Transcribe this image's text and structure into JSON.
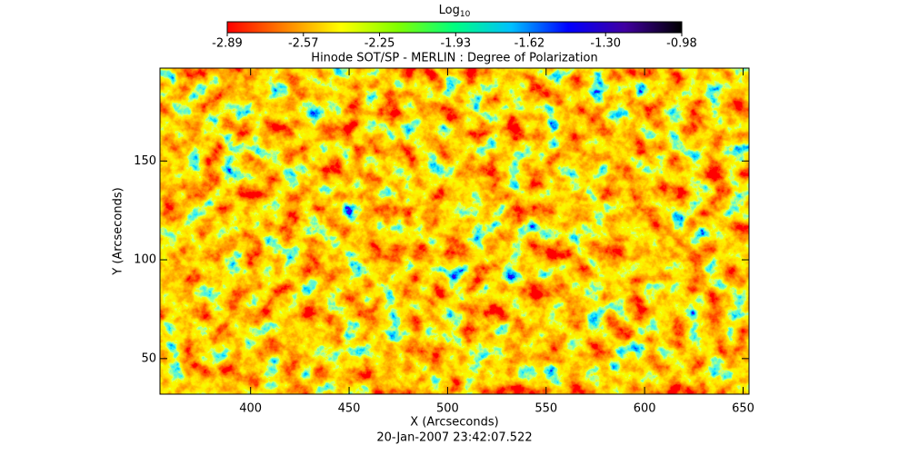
{
  "chart_data": {
    "type": "heatmap",
    "title": "Hinode SOT/SP - MERLIN : Degree of Polarization",
    "x_label": "X (Arcseconds)",
    "y_label": "Y (Arcseconds)",
    "footer": "20-Jan-2007 23:42:07.522",
    "xlim": [
      354,
      653
    ],
    "ylim": [
      32,
      197
    ],
    "xticks": [
      400,
      450,
      500,
      550,
      600,
      650
    ],
    "yticks": [
      50,
      100,
      150
    ],
    "colorbar": {
      "label": "Log",
      "label_subscript": "10",
      "lim": [
        -2.89,
        -0.98
      ],
      "ticks": [
        -2.89,
        -2.57,
        -2.25,
        -1.93,
        -1.62,
        {
          "value": -1.3,
          "label": "-1.30"
        },
        -0.98
      ],
      "colors": [
        "#ff0000",
        "#ff8000",
        "#ffff00",
        "#80ff00",
        "#00ff80",
        "#00c0ff",
        "#0000ff",
        "#4000a0",
        "#000000"
      ]
    }
  }
}
